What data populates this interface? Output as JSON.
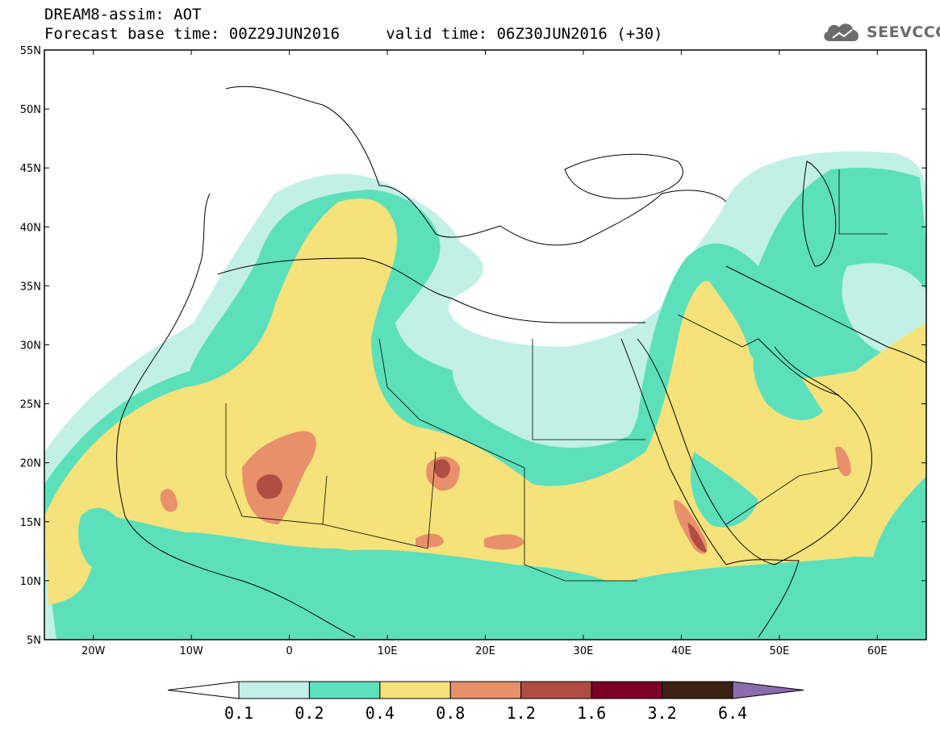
{
  "header": {
    "title": "DREAM8-assim: AOT",
    "base_time_label": "Forecast base time:",
    "base_time": "00Z29JUN2016",
    "valid_time_label": "valid time:",
    "valid_time": "06Z30JUN2016 (+30)"
  },
  "brand": {
    "name": "SEEVCCC",
    "icon": "cloud-logo-icon"
  },
  "map": {
    "projection": "lat-lon",
    "lon_range": [
      -25,
      65
    ],
    "lat_range": [
      5,
      55
    ],
    "lat_ticks": [
      "55N",
      "50N",
      "45N",
      "40N",
      "35N",
      "30N",
      "25N",
      "20N",
      "15N",
      "10N",
      "5N"
    ],
    "lon_ticks": [
      "20W",
      "10W",
      "0",
      "10E",
      "20E",
      "30E",
      "40E",
      "50E",
      "60E"
    ]
  },
  "colorbar": {
    "labels": [
      "0.1",
      "0.2",
      "0.4",
      "0.8",
      "1.2",
      "1.6",
      "3.2",
      "6.4"
    ],
    "colors": [
      "#ffffff",
      "#c2f0e6",
      "#5ce0bc",
      "#f5e27a",
      "#e8906a",
      "#b04d42",
      "#7a0027",
      "#3d2214",
      "#8a6cb0"
    ]
  }
}
